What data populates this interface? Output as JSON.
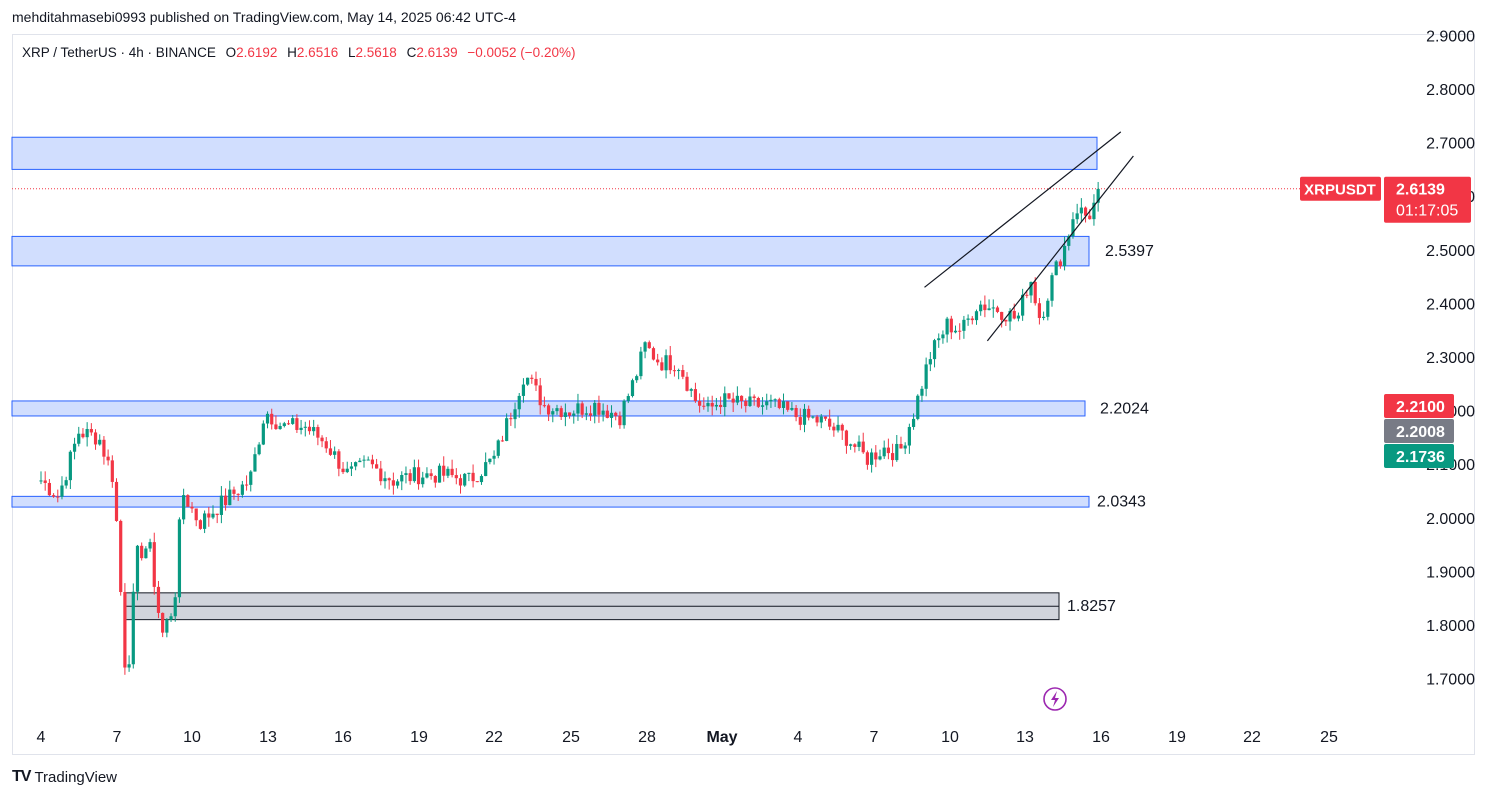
{
  "header": {
    "published": "mehditahmasebi0993 published on TradingView.com, May 14, 2025 06:42 UTC-4"
  },
  "legend": {
    "symbol": "XRP / TetherUS · 4h · BINANCE",
    "open_label": "O",
    "open": "2.6192",
    "high_label": "H",
    "high": "2.6516",
    "low_label": "L",
    "low": "2.5618",
    "close_label": "C",
    "close": "2.6139",
    "change": "−0.0052 (−0.20%)"
  },
  "price_badge": {
    "ticker": "XRPUSDT",
    "price": "2.6139",
    "countdown": "01:17:05"
  },
  "side_badges": [
    {
      "value": "2.2100",
      "color": "#f23645"
    },
    {
      "value": "2.2008",
      "color": "#787b86"
    },
    {
      "value": "2.1736",
      "color": "#089981"
    }
  ],
  "zone_labels": [
    "2.5397",
    "2.2024",
    "2.0343",
    "1.8257"
  ],
  "footer": {
    "brand": "TradingView",
    "logo": "TV"
  },
  "colors": {
    "up": "#089981",
    "down": "#f23645",
    "zone_fill": "#d1defe",
    "zone_border": "#2962ff",
    "gray_zone": "#d1d4dc"
  },
  "chart_data": {
    "type": "candlestick",
    "timeframe": "4h",
    "symbol": "XRPUSDT",
    "ylim": [
      1.63,
      2.92
    ],
    "y_ticks": [
      "1.7000",
      "1.8000",
      "1.9000",
      "2.0000",
      "2.1000",
      "2.2000",
      "2.3000",
      "2.4000",
      "2.5000",
      "2.6000",
      "2.7000",
      "2.8000",
      "2.9000"
    ],
    "x_ticks": [
      "4",
      "7",
      "10",
      "13",
      "16",
      "19",
      "22",
      "25",
      "28",
      "May",
      "4",
      "7",
      "10",
      "13",
      "16",
      "19",
      "22",
      "25"
    ],
    "zones": [
      {
        "low": 2.65,
        "high": 2.71,
        "style": "blue"
      },
      {
        "low": 2.47,
        "high": 2.525,
        "style": "blue",
        "label": "2.5397"
      },
      {
        "low": 2.19,
        "high": 2.218,
        "style": "blue",
        "label": "2.2024"
      },
      {
        "low": 2.02,
        "high": 2.04,
        "style": "blue",
        "label": "2.0343"
      },
      {
        "low": 1.81,
        "high": 1.86,
        "style": "gray",
        "label": "1.8257"
      }
    ],
    "trendlines": [
      {
        "from": [
          "May 9",
          2.43
        ],
        "to": [
          "May 15",
          2.72
        ]
      },
      {
        "from": [
          "May 11",
          2.33
        ],
        "to": [
          "May 15",
          2.67
        ]
      }
    ],
    "current_price": 2.6139,
    "path": [
      [
        4,
        2.07
      ],
      [
        4.7,
        2.04
      ],
      [
        5.5,
        2.16
      ],
      [
        6.3,
        2.15
      ],
      [
        6.9,
        2.07
      ],
      [
        7.4,
        1.68
      ],
      [
        7.8,
        1.93
      ],
      [
        8.3,
        1.95
      ],
      [
        8.8,
        1.78
      ],
      [
        9.3,
        1.84
      ],
      [
        9.6,
        2.05
      ],
      [
        10.3,
        1.99
      ],
      [
        11.0,
        2.02
      ],
      [
        12.3,
        2.07
      ],
      [
        12.9,
        2.2
      ],
      [
        13.6,
        2.17
      ],
      [
        14.5,
        2.17
      ],
      [
        15.3,
        2.14
      ],
      [
        16.2,
        2.08
      ],
      [
        17.0,
        2.1
      ],
      [
        18.0,
        2.07
      ],
      [
        19.0,
        2.08
      ],
      [
        20.0,
        2.08
      ],
      [
        21.0,
        2.07
      ],
      [
        22.0,
        2.11
      ],
      [
        22.7,
        2.2
      ],
      [
        23.2,
        2.27
      ],
      [
        24.0,
        2.21
      ],
      [
        25.0,
        2.2
      ],
      [
        26.0,
        2.21
      ],
      [
        27.0,
        2.19
      ],
      [
        27.6,
        2.26
      ],
      [
        28.0,
        2.32
      ],
      [
        28.6,
        2.29
      ],
      [
        29.3,
        2.29
      ],
      [
        30.0,
        2.22
      ],
      [
        30.5,
        2.2
      ],
      [
        31.0,
        2.22
      ],
      [
        32.0,
        2.21
      ],
      [
        33.0,
        2.21
      ],
      [
        34.0,
        2.19
      ],
      [
        35.0,
        2.18
      ],
      [
        36.0,
        2.15
      ],
      [
        36.8,
        2.11
      ],
      [
        37.5,
        2.13
      ],
      [
        38.1,
        2.12
      ],
      [
        38.7,
        2.2
      ],
      [
        39.3,
        2.3
      ],
      [
        40.0,
        2.36
      ],
      [
        40.6,
        2.35
      ],
      [
        41.2,
        2.4
      ],
      [
        42.0,
        2.39
      ],
      [
        42.8,
        2.37
      ],
      [
        43.3,
        2.45
      ],
      [
        43.7,
        2.37
      ],
      [
        44.2,
        2.45
      ],
      [
        44.7,
        2.51
      ],
      [
        45.1,
        2.58
      ],
      [
        45.6,
        2.56
      ],
      [
        46.1,
        2.61
      ]
    ]
  }
}
